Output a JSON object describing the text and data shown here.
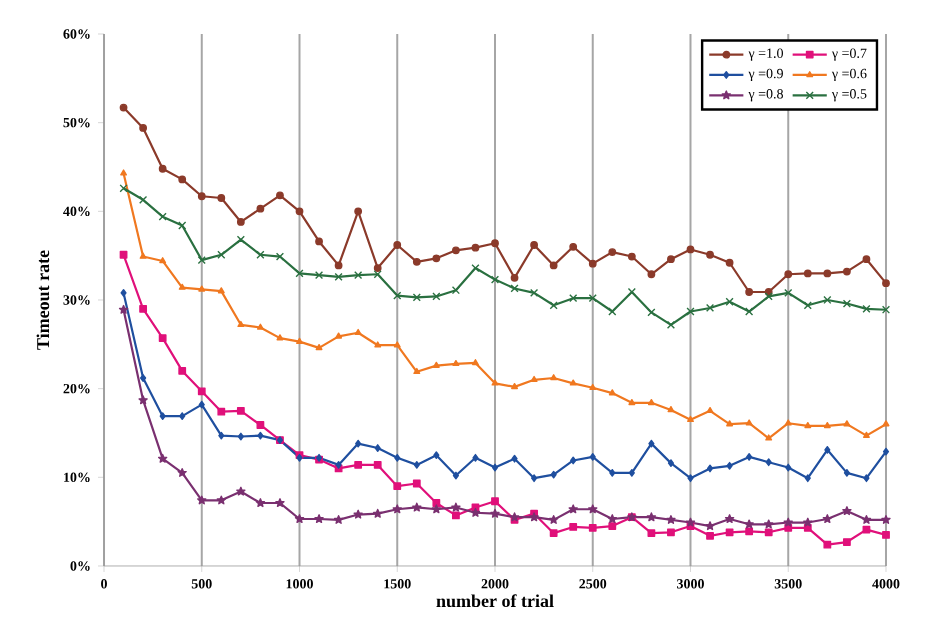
{
  "chart_data": {
    "type": "line",
    "xlabel": "number of trial",
    "ylabel": "Timeout rate",
    "x": [
      100,
      200,
      300,
      400,
      500,
      600,
      700,
      800,
      900,
      1000,
      1100,
      1200,
      1300,
      1400,
      1500,
      1600,
      1700,
      1800,
      1900,
      2000,
      2100,
      2200,
      2300,
      2400,
      2500,
      2600,
      2700,
      2800,
      2900,
      3000,
      3100,
      3200,
      3300,
      3400,
      3500,
      3600,
      3700,
      3800,
      3900,
      4000
    ],
    "xlim": [
      0,
      4000
    ],
    "xticks": [
      0,
      500,
      1000,
      1500,
      2000,
      2500,
      3000,
      3500,
      4000
    ],
    "ylim": [
      0,
      60
    ],
    "yticks": [
      {
        "value": 0,
        "label": "0%"
      },
      {
        "value": 10,
        "label": "10%"
      },
      {
        "value": 20,
        "label": "20%"
      },
      {
        "value": 30,
        "label": "30%"
      },
      {
        "value": 40,
        "label": "40%"
      },
      {
        "value": 50,
        "label": "50%"
      },
      {
        "value": 60,
        "label": "60%"
      }
    ],
    "grid": "x",
    "legend": "top right",
    "line_style": "solid",
    "series": [
      {
        "name": "γ =1.0",
        "color": "#8b3a2a",
        "marker": "circle",
        "values": [
          51.7,
          49.4,
          44.8,
          43.6,
          41.7,
          41.5,
          38.8,
          40.3,
          41.8,
          40.0,
          36.6,
          33.9,
          40.0,
          33.6,
          36.2,
          34.3,
          34.7,
          35.6,
          35.9,
          36.4,
          32.5,
          36.2,
          33.9,
          36.0,
          34.1,
          35.4,
          34.9,
          32.9,
          34.6,
          35.7,
          35.1,
          34.2,
          30.9,
          30.9,
          32.9,
          33.0,
          33.0,
          33.2,
          34.6,
          31.9
        ]
      },
      {
        "name": "γ =0.7",
        "color": "#e0107a",
        "marker": "square",
        "values": [
          35.1,
          29.0,
          25.7,
          22.0,
          19.7,
          17.4,
          17.5,
          15.9,
          14.2,
          12.5,
          12.0,
          11.0,
          11.4,
          11.4,
          9.0,
          9.3,
          7.1,
          5.7,
          6.6,
          7.3,
          5.2,
          5.9,
          3.7,
          4.4,
          4.3,
          4.5,
          5.5,
          3.7,
          3.8,
          4.5,
          3.4,
          3.8,
          3.9,
          3.8,
          4.3,
          4.3,
          2.4,
          2.7,
          4.1,
          3.5
        ]
      },
      {
        "name": "γ =0.9",
        "color": "#1f4f9f",
        "marker": "diamond",
        "values": [
          30.8,
          21.2,
          16.9,
          16.9,
          18.2,
          14.7,
          14.6,
          14.7,
          14.2,
          12.2,
          12.2,
          11.4,
          13.8,
          13.3,
          12.2,
          11.4,
          12.5,
          10.2,
          12.2,
          11.1,
          12.1,
          9.9,
          10.3,
          11.9,
          12.3,
          10.5,
          10.5,
          13.8,
          11.6,
          9.9,
          11.0,
          11.3,
          12.3,
          11.7,
          11.1,
          9.9,
          13.1,
          10.5,
          9.9,
          12.9
        ]
      },
      {
        "name": "γ =0.6",
        "color": "#f07820",
        "marker": "triangle",
        "values": [
          44.3,
          34.9,
          34.4,
          31.4,
          31.2,
          31.0,
          27.2,
          26.9,
          25.7,
          25.3,
          24.6,
          25.9,
          26.3,
          24.9,
          24.9,
          21.9,
          22.6,
          22.8,
          22.9,
          20.6,
          20.2,
          21.0,
          21.2,
          20.6,
          20.1,
          19.5,
          18.4,
          18.4,
          17.6,
          16.5,
          17.5,
          16.0,
          16.1,
          14.4,
          16.1,
          15.8,
          15.8,
          16.0,
          14.7,
          16.0
        ]
      },
      {
        "name": "γ =0.8",
        "color": "#7a3070",
        "marker": "star",
        "values": [
          28.9,
          18.7,
          12.1,
          10.5,
          7.4,
          7.4,
          8.4,
          7.1,
          7.1,
          5.3,
          5.3,
          5.2,
          5.8,
          5.9,
          6.4,
          6.6,
          6.4,
          6.6,
          6.0,
          5.9,
          5.5,
          5.5,
          5.2,
          6.4,
          6.4,
          5.3,
          5.5,
          5.5,
          5.2,
          4.9,
          4.5,
          5.3,
          4.7,
          4.7,
          4.9,
          4.9,
          5.3,
          6.2,
          5.2,
          5.2
        ]
      },
      {
        "name": "γ =0.5",
        "color": "#2a7040",
        "marker": "cross",
        "values": [
          42.6,
          41.3,
          39.4,
          38.4,
          34.5,
          35.1,
          36.8,
          35.1,
          34.9,
          33.0,
          32.8,
          32.6,
          32.8,
          32.9,
          30.5,
          30.3,
          30.4,
          31.1,
          33.6,
          32.3,
          31.3,
          30.8,
          29.4,
          30.2,
          30.2,
          28.7,
          30.9,
          28.6,
          27.2,
          28.7,
          29.1,
          29.8,
          28.7,
          30.4,
          30.8,
          29.4,
          30.0,
          29.6,
          29.0,
          28.9
        ]
      }
    ]
  }
}
